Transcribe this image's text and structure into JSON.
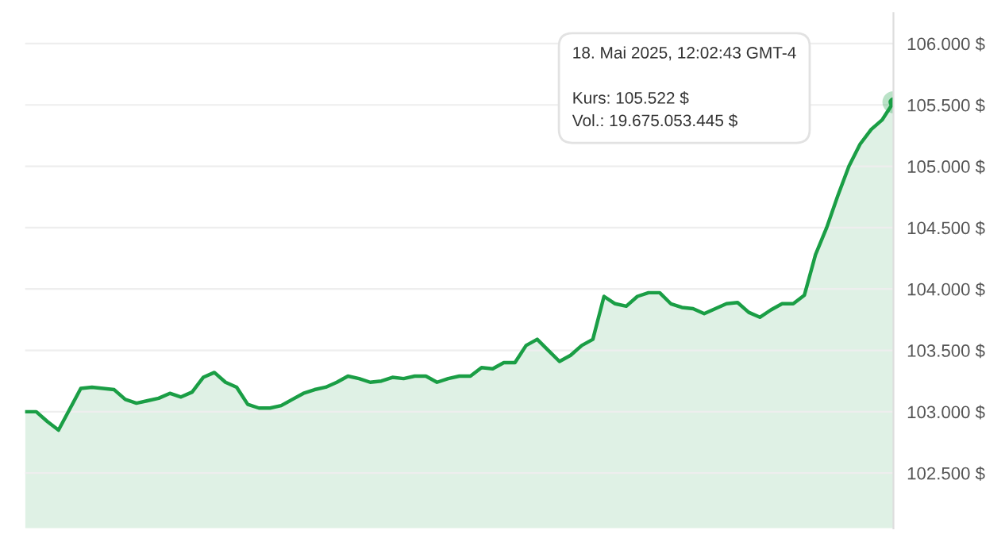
{
  "chart_data": {
    "type": "area",
    "categories": [
      null,
      null,
      null,
      null,
      null,
      null,
      null,
      null,
      null,
      null,
      null,
      null,
      null,
      null,
      null,
      null,
      null,
      null,
      null,
      null,
      null,
      null,
      null,
      null,
      null,
      null,
      null,
      null,
      null,
      null,
      null,
      null,
      null,
      null,
      null,
      null,
      null,
      null,
      null,
      null,
      null,
      null,
      null,
      null,
      null,
      null,
      null,
      null,
      null,
      null,
      null,
      null,
      null,
      null,
      null,
      null,
      null,
      null,
      null,
      null,
      null,
      null,
      null,
      null,
      null,
      null,
      null,
      null,
      null,
      null,
      null,
      null,
      null,
      null,
      null,
      null,
      null,
      null,
      null
    ],
    "series": [
      {
        "color": "#1a9e45",
        "values": [
          103000,
          103000,
          102920,
          102850,
          103020,
          103190,
          103200,
          103190,
          103180,
          103100,
          103070,
          103090,
          103110,
          103150,
          103120,
          103160,
          103280,
          103320,
          103240,
          103200,
          103060,
          103030,
          103030,
          103050,
          103100,
          103150,
          103180,
          103200,
          103240,
          103290,
          103270,
          103240,
          103250,
          103280,
          103270,
          103290,
          103290,
          103240,
          103270,
          103290,
          103290,
          103360,
          103350,
          103400,
          103400,
          103540,
          103590,
          103500,
          103410,
          103460,
          103540,
          103590,
          103940,
          103880,
          103860,
          103940,
          103970,
          103970,
          103880,
          103850,
          103840,
          103800,
          103840,
          103880,
          103890,
          103810,
          103770,
          103830,
          103880,
          103880,
          103950,
          104280,
          104500,
          104760,
          105000,
          105180,
          105300,
          105380,
          105522
        ]
      }
    ],
    "ylim": [
      102050,
      106250
    ],
    "yticks": [
      {
        "value": 102500,
        "label": "102.500 $"
      },
      {
        "value": 103000,
        "label": "103.000 $"
      },
      {
        "value": 103500,
        "label": "103.500 $"
      },
      {
        "value": 104000,
        "label": "104.000 $"
      },
      {
        "value": 104500,
        "label": "104.500 $"
      },
      {
        "value": 105000,
        "label": "105.000 $"
      },
      {
        "value": 105500,
        "label": "105.500 $"
      },
      {
        "value": 106000,
        "label": "106.000 $"
      }
    ],
    "grid": "y",
    "annotations": [
      "18. Mai 2025, 12:02:43 GMT-4\n\nKurs: 105.522 $\nVol.: 19.675.053.445 $"
    ]
  }
}
